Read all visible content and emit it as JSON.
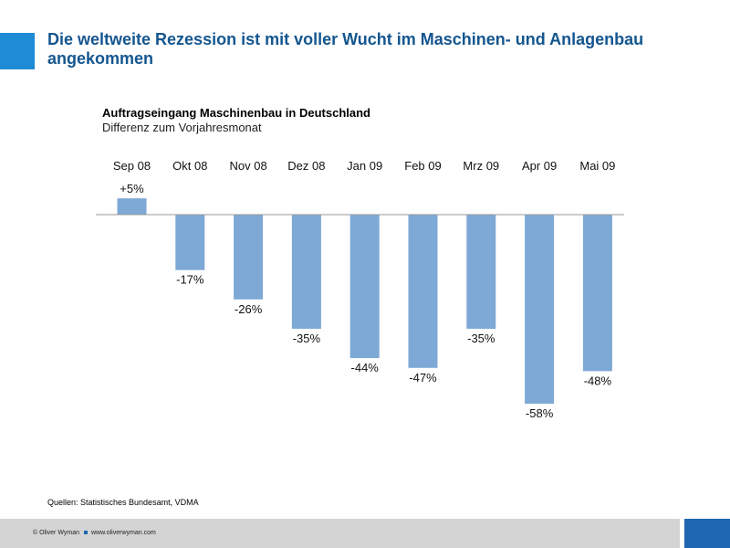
{
  "slide": {
    "title": "Die weltweite Rezession ist mit voller Wucht im Maschinen- und Anlagenbau angekommen",
    "source": "Quellen: Statistisches Bundesamt, VDMA"
  },
  "footer": {
    "copyright": "© Oliver Wyman",
    "website": "www.oliverwyman.com"
  },
  "colors": {
    "title": "#14568f",
    "accent": "#1f8ad6",
    "bar": "#7ea9d6",
    "footer_bar": "#d4d4d4",
    "footer_accent": "#1f66b0"
  },
  "chart_data": {
    "type": "bar",
    "title": "Auftragseingang Maschinenbau in Deutschland",
    "subtitle": "Differenz zum Vorjahresmonat",
    "categories": [
      "Sep 08",
      "Okt 08",
      "Nov 08",
      "Dez 08",
      "Jan 09",
      "Feb 09",
      "Mrz 09",
      "Apr 09",
      "Mai 09"
    ],
    "values": [
      5,
      -17,
      -26,
      -35,
      -44,
      -47,
      -35,
      -58,
      -48
    ],
    "labels": [
      "+5%",
      "-17%",
      "-26%",
      "-35%",
      "-44%",
      "-47%",
      "-35%",
      "-58%",
      "-48%"
    ],
    "unit": "%",
    "ylim": [
      -60,
      10
    ],
    "xlabel": "",
    "ylabel": "",
    "grid": false,
    "category_axis_position": "top"
  }
}
